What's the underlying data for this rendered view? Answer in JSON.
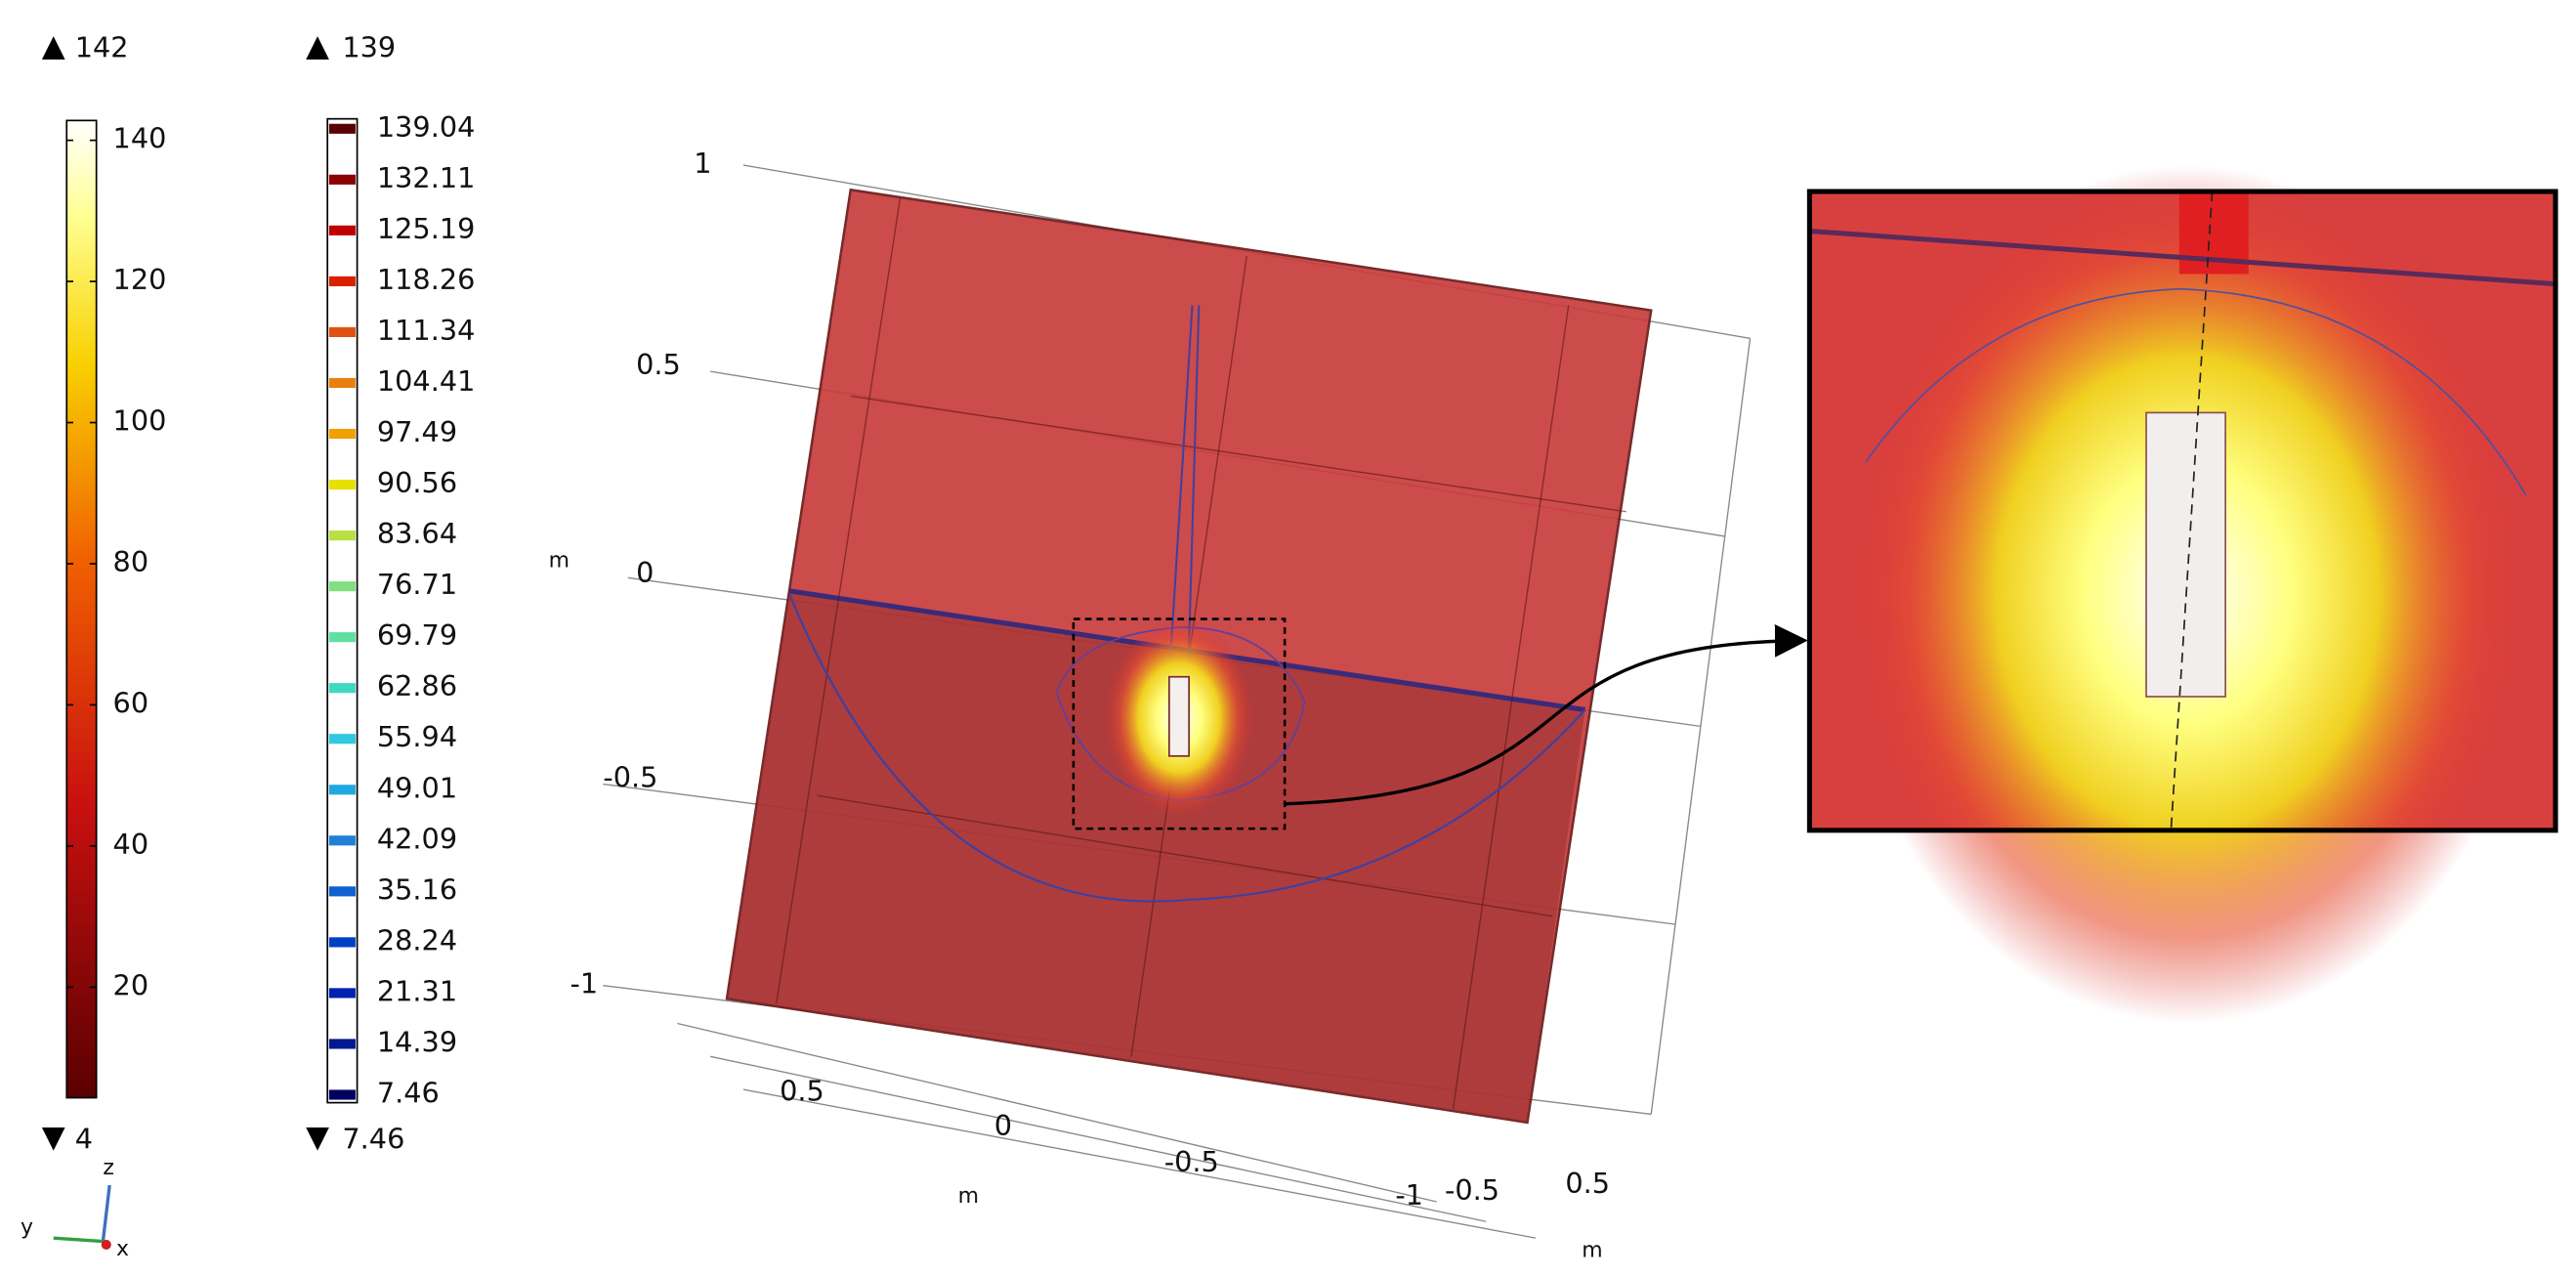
{
  "colorbar": {
    "max_label": "142",
    "min_label": "4",
    "ticks": [
      "140",
      "120",
      "100",
      "80",
      "60",
      "40",
      "20"
    ]
  },
  "contour_legend": {
    "max_label": "139",
    "min_label": "7.46",
    "levels": [
      "139.04",
      "132.11",
      "125.19",
      "118.26",
      "111.34",
      "104.41",
      "97.49",
      "90.56",
      "83.64",
      "76.71",
      "69.79",
      "62.86",
      "55.94",
      "49.01",
      "42.09",
      "35.16",
      "28.24",
      "21.31",
      "14.39",
      "7.46"
    ],
    "colors": [
      "#5a0000",
      "#8b0000",
      "#c00000",
      "#d82000",
      "#e05010",
      "#e88010",
      "#f0a000",
      "#e8e000",
      "#b8e040",
      "#80e080",
      "#60e0a0",
      "#40d8c0",
      "#30c8e0",
      "#20a8e0",
      "#2080d8",
      "#1060d0",
      "#0040c8",
      "#0020b0",
      "#001890",
      "#000060"
    ]
  },
  "plot": {
    "z_ticks": [
      "1",
      "0.5",
      "0",
      "-0.5",
      "-1"
    ],
    "z_unit": "m",
    "y_ticks": [
      "0.5",
      "0",
      "-0.5",
      "-1"
    ],
    "y_unit": "m",
    "x_ticks": [
      "-0.5",
      "0.5"
    ],
    "x_unit": "m"
  },
  "triad": {
    "z": "z",
    "y": "y",
    "x": "x"
  }
}
